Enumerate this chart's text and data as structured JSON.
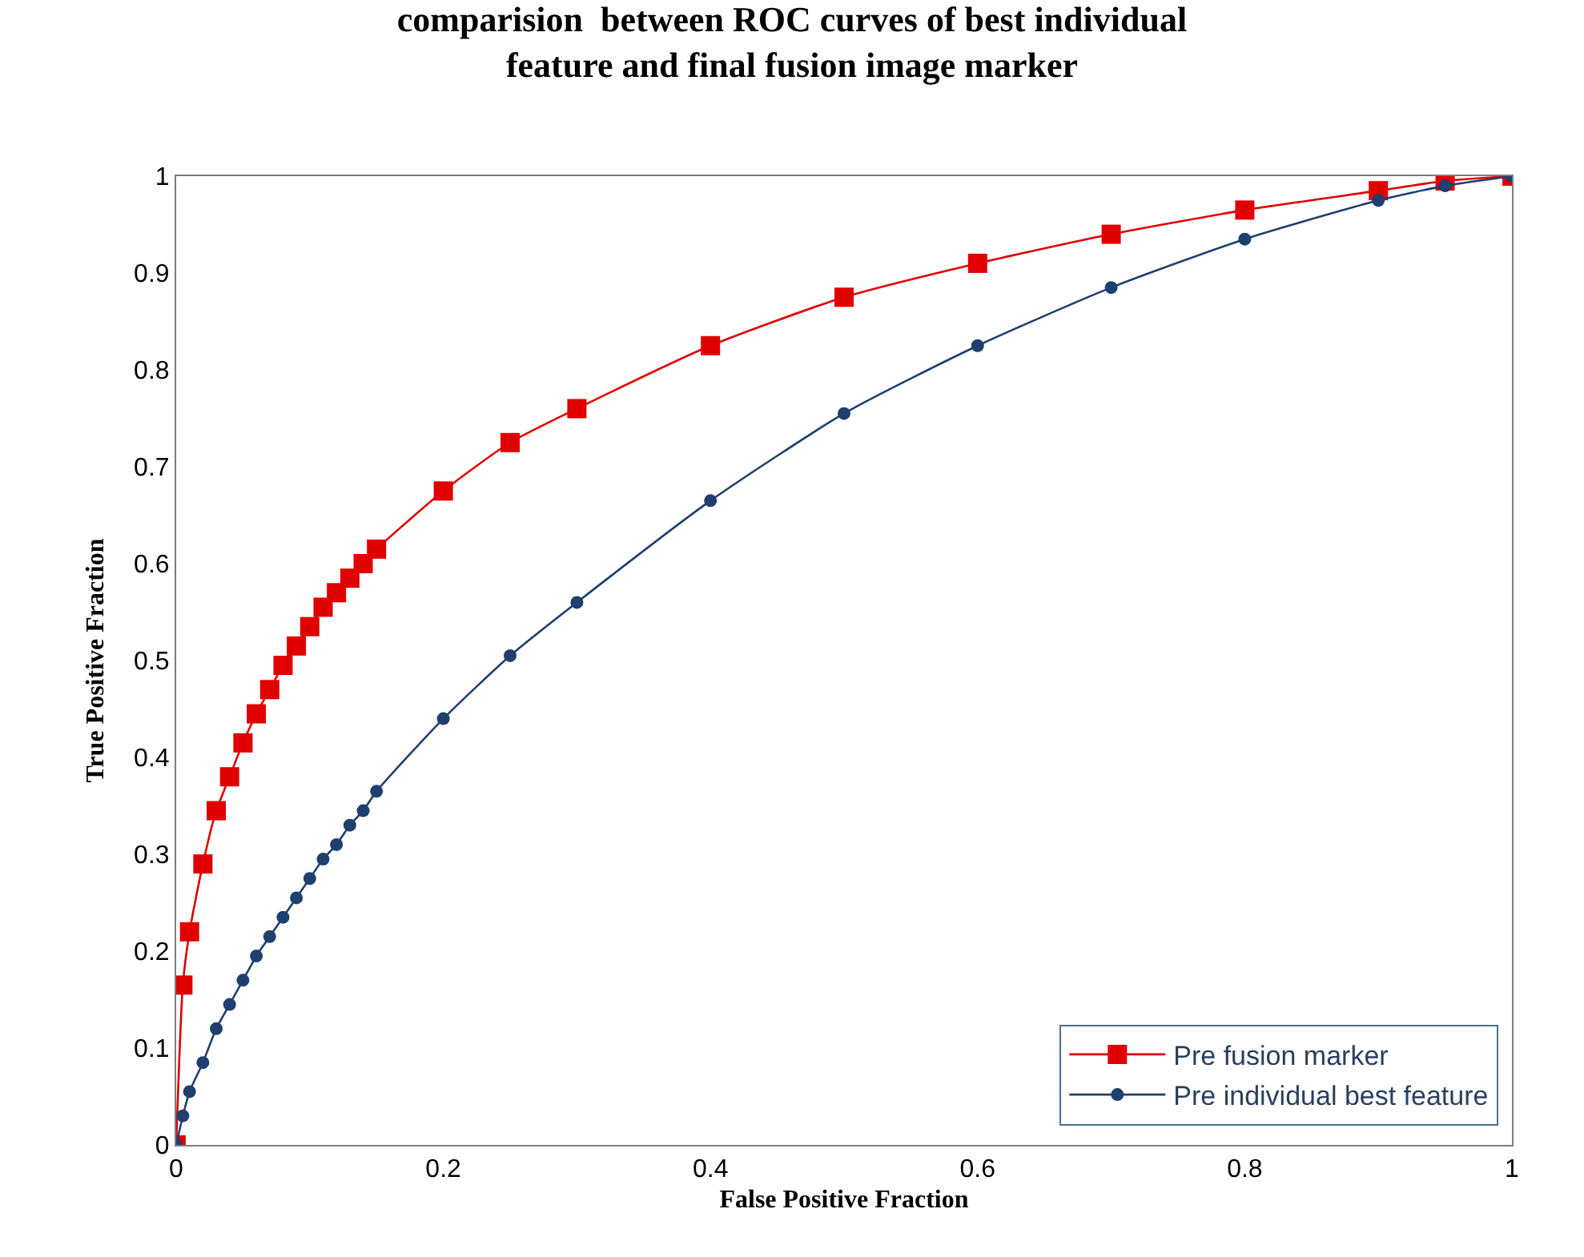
{
  "chart_data": {
    "type": "line",
    "title": "comparision  between ROC curves of best individual\nfeature and final fusion image marker",
    "xlabel": "False Positive Fraction",
    "ylabel": "True Positive Fraction",
    "xlim": [
      0,
      1
    ],
    "ylim": [
      0,
      1
    ],
    "xticks": [
      0,
      0.2,
      0.4,
      0.6,
      0.8,
      1
    ],
    "yticks": [
      0,
      0.1,
      0.2,
      0.3,
      0.4,
      0.5,
      0.6,
      0.7,
      0.8,
      0.9,
      1
    ],
    "grid": false,
    "legend": "bottom right",
    "line_style": "solid",
    "series": [
      {
        "name": "Pre fusion marker",
        "color": "#e00000",
        "marker": "square",
        "x": [
          0,
          0.005,
          0.01,
          0.02,
          0.03,
          0.04,
          0.05,
          0.06,
          0.07,
          0.08,
          0.09,
          0.1,
          0.11,
          0.12,
          0.13,
          0.14,
          0.15,
          0.2,
          0.25,
          0.3,
          0.4,
          0.5,
          0.6,
          0.7,
          0.8,
          0.9,
          0.95,
          1
        ],
        "values": [
          0,
          0.165,
          0.22,
          0.29,
          0.345,
          0.38,
          0.415,
          0.445,
          0.47,
          0.495,
          0.515,
          0.535,
          0.555,
          0.57,
          0.585,
          0.6,
          0.615,
          0.675,
          0.725,
          0.76,
          0.825,
          0.875,
          0.91,
          0.94,
          0.965,
          0.985,
          0.995,
          1
        ]
      },
      {
        "name": "Pre individual best feature",
        "color": "#1f3f6e",
        "marker": "circle",
        "x": [
          0,
          0.005,
          0.01,
          0.02,
          0.03,
          0.04,
          0.05,
          0.06,
          0.07,
          0.08,
          0.09,
          0.1,
          0.11,
          0.12,
          0.13,
          0.14,
          0.15,
          0.2,
          0.25,
          0.3,
          0.4,
          0.5,
          0.6,
          0.7,
          0.8,
          0.9,
          0.95,
          1
        ],
        "values": [
          0,
          0.03,
          0.055,
          0.085,
          0.12,
          0.145,
          0.17,
          0.195,
          0.215,
          0.235,
          0.255,
          0.275,
          0.295,
          0.31,
          0.33,
          0.345,
          0.365,
          0.44,
          0.505,
          0.56,
          0.665,
          0.755,
          0.825,
          0.885,
          0.935,
          0.975,
          0.99,
          1
        ]
      }
    ]
  }
}
